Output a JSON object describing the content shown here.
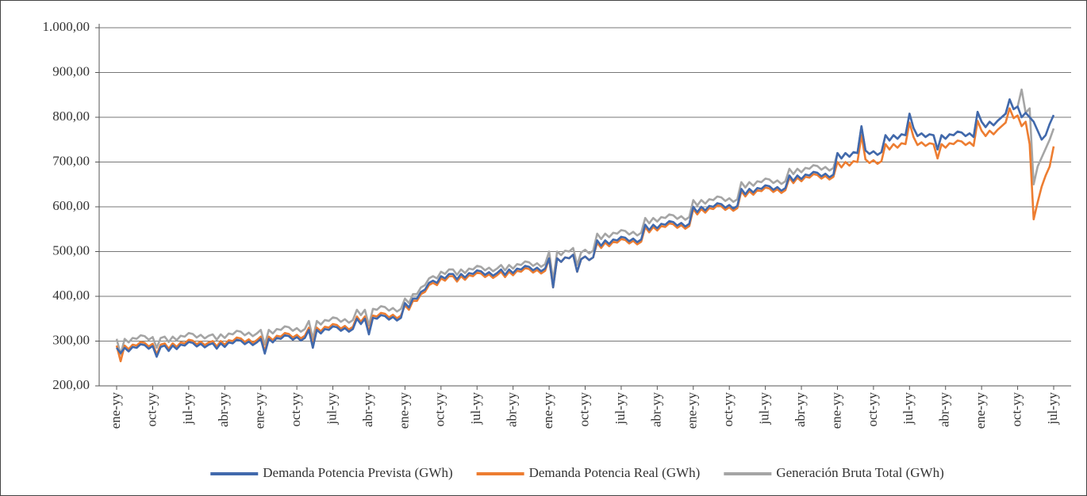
{
  "chart_data": {
    "type": "line",
    "categories": [
      "ene-yy",
      null,
      null,
      null,
      null,
      null,
      null,
      null,
      null,
      "oct-yy",
      null,
      null,
      null,
      null,
      null,
      null,
      null,
      null,
      "jul-yy",
      null,
      null,
      null,
      null,
      null,
      null,
      null,
      null,
      "abr-yy",
      null,
      null,
      null,
      null,
      null,
      null,
      null,
      null,
      "ene-yy",
      null,
      null,
      null,
      null,
      null,
      null,
      null,
      null,
      "oct-yy",
      null,
      null,
      null,
      null,
      null,
      null,
      null,
      null,
      "jul-yy",
      null,
      null,
      null,
      null,
      null,
      null,
      null,
      null,
      "abr-yy",
      null,
      null,
      null,
      null,
      null,
      null,
      null,
      null,
      "ene-yy",
      null,
      null,
      null,
      null,
      null,
      null,
      null,
      null,
      "oct-yy",
      null,
      null,
      null,
      null,
      null,
      null,
      null,
      null,
      "jul-yy",
      null,
      null,
      null,
      null,
      null,
      null,
      null,
      null,
      "abr-yy",
      null,
      null,
      null,
      null,
      null,
      null,
      null,
      null,
      "ene-yy",
      null,
      null,
      null,
      null,
      null,
      null,
      null,
      null,
      "oct-yy",
      null,
      null,
      null,
      null,
      null,
      null,
      null,
      null,
      "jul-yy",
      null,
      null,
      null,
      null,
      null,
      null,
      null,
      null,
      "abr-yy",
      null,
      null,
      null,
      null,
      null,
      null,
      null,
      null,
      "ene-yy",
      null,
      null,
      null,
      null,
      null,
      null,
      null,
      null,
      "oct-yy",
      null,
      null,
      null,
      null,
      null,
      null,
      null,
      null,
      "jul-yy",
      null,
      null,
      null,
      null,
      null,
      null,
      null,
      null,
      "abr-yy",
      null,
      null,
      null,
      null,
      null,
      null,
      null,
      null,
      "ene-yy",
      null,
      null,
      null,
      null,
      null,
      null,
      null,
      null,
      "oct-yy",
      null,
      null,
      null,
      null,
      null,
      null,
      null,
      null,
      "jul-yy",
      null,
      null,
      null,
      null,
      null,
      null,
      null,
      null,
      "abr-yy",
      null,
      null,
      null,
      null,
      null,
      null,
      null,
      null,
      "ene-yy",
      null,
      null,
      null,
      null,
      null,
      null,
      null,
      null,
      "oct-yy",
      null,
      null,
      null,
      null,
      null,
      null,
      null,
      null,
      "jul-yy"
    ],
    "series": [
      {
        "name": "Demanda Potencia Prevista (GWh)",
        "color": "#4169ac",
        "values": [
          285,
          273,
          285,
          277,
          287,
          285,
          293,
          291,
          283,
          289,
          265,
          287,
          290,
          278,
          290,
          282,
          292,
          290,
          298,
          296,
          288,
          294,
          286,
          292,
          295,
          283,
          295,
          287,
          297,
          295,
          303,
          301,
          293,
          299,
          291,
          297,
          305,
          272,
          305,
          297,
          307,
          305,
          313,
          311,
          303,
          309,
          301,
          307,
          325,
          285,
          325,
          317,
          327,
          325,
          333,
          331,
          323,
          329,
          321,
          327,
          350,
          338,
          350,
          315,
          352,
          350,
          358,
          356,
          348,
          354,
          346,
          352,
          385,
          375,
          395,
          395,
          410,
          415,
          430,
          435,
          430,
          445,
          440,
          450,
          450,
          438,
          450,
          442,
          452,
          450,
          458,
          456,
          448,
          454,
          446,
          452,
          460,
          448,
          460,
          452,
          462,
          460,
          468,
          466,
          458,
          464,
          456,
          462,
          485,
          420,
          485,
          477,
          487,
          485,
          493,
          455,
          483,
          489,
          481,
          487,
          525,
          513,
          525,
          517,
          527,
          525,
          533,
          531,
          523,
          529,
          521,
          527,
          560,
          548,
          560,
          552,
          562,
          560,
          568,
          566,
          558,
          564,
          556,
          562,
          600,
          588,
          600,
          592,
          602,
          600,
          608,
          606,
          598,
          604,
          596,
          602,
          640,
          628,
          640,
          632,
          642,
          640,
          648,
          646,
          638,
          644,
          636,
          642,
          670,
          658,
          670,
          662,
          672,
          670,
          678,
          676,
          668,
          674,
          666,
          672,
          720,
          708,
          720,
          712,
          722,
          720,
          780,
          726,
          718,
          724,
          716,
          722,
          760,
          748,
          760,
          752,
          762,
          760,
          808,
          776,
          758,
          764,
          756,
          762,
          760,
          728,
          760,
          752,
          762,
          760,
          768,
          766,
          758,
          764,
          756,
          812,
          790,
          778,
          790,
          782,
          792,
          800,
          808,
          840,
          818,
          824,
          800,
          810,
          800,
          790,
          770,
          750,
          760,
          785,
          805
        ]
      },
      {
        "name": "Demanda Potencia Real (GWh)",
        "color": "#ed7d31",
        "values": [
          290,
          255,
          290,
          282,
          292,
          290,
          298,
          296,
          288,
          294,
          270,
          292,
          295,
          283,
          295,
          287,
          297,
          295,
          303,
          301,
          293,
          299,
          291,
          297,
          300,
          288,
          300,
          292,
          302,
          300,
          308,
          306,
          298,
          304,
          296,
          302,
          310,
          277,
          310,
          302,
          312,
          310,
          318,
          316,
          308,
          314,
          306,
          312,
          330,
          290,
          330,
          322,
          332,
          330,
          338,
          336,
          328,
          334,
          326,
          332,
          355,
          343,
          355,
          320,
          357,
          355,
          363,
          361,
          353,
          359,
          351,
          357,
          380,
          370,
          390,
          390,
          405,
          410,
          425,
          430,
          425,
          440,
          435,
          445,
          445,
          433,
          445,
          437,
          447,
          445,
          453,
          451,
          443,
          449,
          441,
          447,
          455,
          443,
          455,
          447,
          457,
          455,
          463,
          461,
          453,
          459,
          451,
          457,
          485,
          420,
          485,
          477,
          487,
          485,
          493,
          455,
          483,
          489,
          481,
          487,
          520,
          508,
          520,
          512,
          522,
          520,
          528,
          526,
          518,
          524,
          516,
          522,
          555,
          543,
          555,
          547,
          557,
          555,
          563,
          561,
          553,
          559,
          551,
          557,
          595,
          583,
          595,
          587,
          597,
          595,
          603,
          601,
          593,
          599,
          591,
          597,
          635,
          623,
          635,
          627,
          637,
          635,
          643,
          641,
          633,
          639,
          631,
          637,
          665,
          653,
          665,
          657,
          667,
          665,
          673,
          671,
          663,
          669,
          661,
          667,
          700,
          688,
          700,
          692,
          702,
          700,
          760,
          706,
          698,
          704,
          696,
          702,
          740,
          728,
          740,
          732,
          742,
          740,
          788,
          756,
          738,
          744,
          736,
          742,
          740,
          708,
          740,
          732,
          742,
          740,
          748,
          746,
          738,
          744,
          736,
          792,
          770,
          758,
          770,
          762,
          772,
          780,
          788,
          820,
          798,
          804,
          780,
          790,
          740,
          572,
          610,
          645,
          670,
          690,
          735
        ]
      },
      {
        "name": "Generación Bruta Total (GWh)",
        "color": "#a5a5a5",
        "values": [
          305,
          270,
          305,
          297,
          307,
          305,
          313,
          311,
          303,
          309,
          285,
          307,
          310,
          298,
          310,
          302,
          312,
          310,
          318,
          316,
          308,
          314,
          306,
          312,
          315,
          303,
          315,
          307,
          317,
          315,
          323,
          321,
          313,
          319,
          311,
          317,
          325,
          292,
          325,
          317,
          327,
          325,
          333,
          331,
          323,
          329,
          321,
          327,
          345,
          305,
          345,
          337,
          347,
          345,
          353,
          351,
          343,
          349,
          341,
          347,
          370,
          358,
          370,
          335,
          372,
          370,
          378,
          376,
          368,
          374,
          366,
          372,
          395,
          385,
          405,
          405,
          420,
          425,
          440,
          445,
          440,
          455,
          450,
          460,
          460,
          448,
          460,
          452,
          462,
          460,
          468,
          466,
          458,
          464,
          456,
          462,
          470,
          458,
          470,
          462,
          472,
          470,
          478,
          476,
          468,
          474,
          466,
          472,
          500,
          435,
          500,
          492,
          502,
          500,
          508,
          470,
          498,
          504,
          496,
          502,
          540,
          528,
          540,
          532,
          542,
          540,
          548,
          546,
          538,
          544,
          536,
          542,
          575,
          563,
          575,
          567,
          577,
          575,
          583,
          581,
          573,
          579,
          571,
          577,
          615,
          603,
          615,
          607,
          617,
          615,
          623,
          621,
          613,
          619,
          611,
          617,
          655,
          643,
          655,
          647,
          657,
          655,
          663,
          661,
          653,
          659,
          651,
          657,
          685,
          673,
          685,
          677,
          687,
          685,
          693,
          691,
          683,
          689,
          681,
          687,
          720,
          708,
          720,
          712,
          722,
          720,
          780,
          726,
          718,
          724,
          716,
          722,
          760,
          748,
          760,
          752,
          762,
          760,
          808,
          776,
          758,
          764,
          756,
          762,
          760,
          728,
          760,
          752,
          762,
          760,
          768,
          766,
          758,
          764,
          756,
          812,
          790,
          778,
          790,
          782,
          792,
          800,
          808,
          840,
          818,
          824,
          862,
          810,
          820,
          650,
          690,
          710,
          730,
          750,
          775
        ]
      }
    ],
    "ylim": [
      200,
      1000
    ],
    "yticks": [
      {
        "value": 200,
        "label": "200,00"
      },
      {
        "value": 300,
        "label": "300,00"
      },
      {
        "value": 400,
        "label": "400,00"
      },
      {
        "value": 500,
        "label": "500,00"
      },
      {
        "value": 600,
        "label": "600,00"
      },
      {
        "value": 700,
        "label": "700,00"
      },
      {
        "value": 800,
        "label": "800,00"
      },
      {
        "value": 900,
        "label": "900,00"
      },
      {
        "value": 1000,
        "label": "1.000,00"
      }
    ],
    "grid": true,
    "legend": "bottom"
  }
}
